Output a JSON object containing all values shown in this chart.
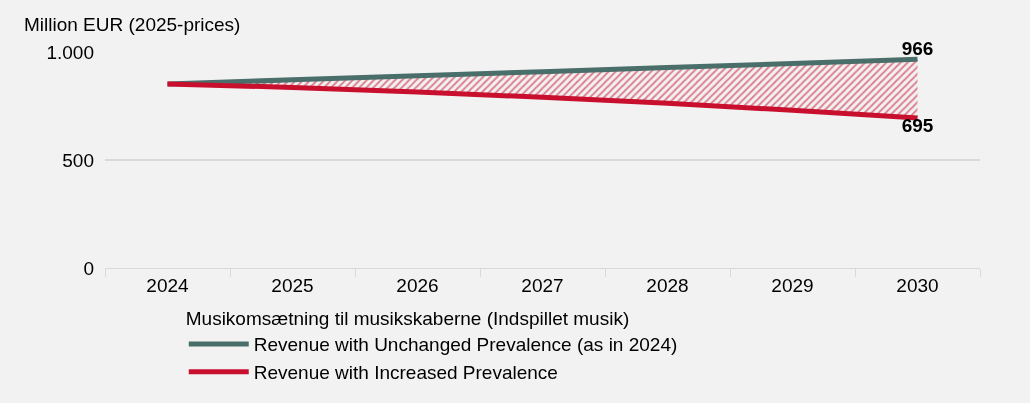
{
  "chart_data": {
    "type": "line",
    "ylabel": "Million EUR (2025-prices)",
    "legend_title": "Musikomsætning til musikskaberne (Indspillet musik)",
    "categories": [
      "2024",
      "2025",
      "2026",
      "2027",
      "2028",
      "2029",
      "2030"
    ],
    "series": [
      {
        "name": "Revenue with Unchanged Prevalence (as in 2024)",
        "color": "#4a6e6a",
        "values": [
          852,
          871,
          890,
          909,
          928,
          947,
          966
        ],
        "value_labels": [
          null,
          null,
          null,
          null,
          null,
          null,
          "966"
        ]
      },
      {
        "name": "Revenue with Increased Prevalence",
        "color": "#c8102e",
        "values": [
          852,
          836,
          815,
          790,
          763,
          730,
          695
        ],
        "lower": [
          852,
          836,
          815,
          790,
          763,
          730,
          695
        ],
        "upper": [
          852,
          871,
          890,
          909,
          928,
          947,
          966
        ],
        "value_labels": [
          null,
          null,
          null,
          null,
          null,
          null,
          "695"
        ]
      }
    ],
    "ylim": [
      0,
      1000
    ],
    "yticks": [
      0,
      500,
      {
        "value": 1000,
        "label": "1.000"
      }
    ],
    "grid": "y",
    "legend": "bottom",
    "line_style": "solid",
    "marker": "none"
  }
}
